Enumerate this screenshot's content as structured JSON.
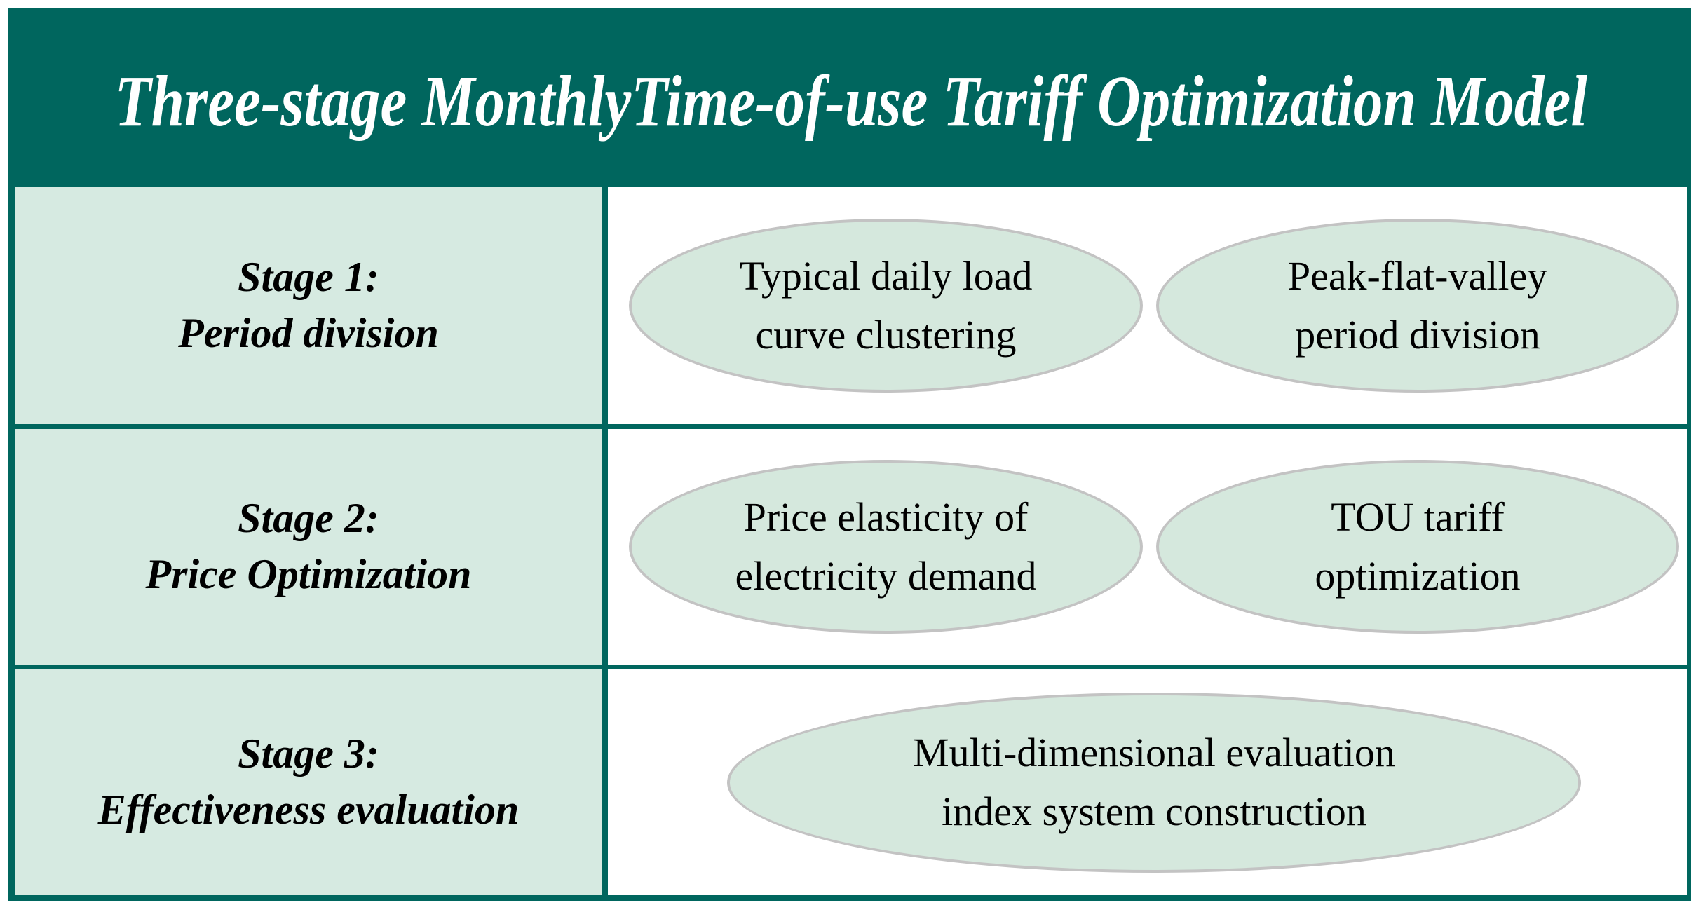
{
  "title": "Three-stage MonthlyTime-of-use Tariff Optimization Model",
  "rows": [
    {
      "stage": "Stage 1:",
      "name": "Period division",
      "ellipses": [
        {
          "line1": "Typical daily load",
          "line2": "curve clustering"
        },
        {
          "line1": "Peak-flat-valley",
          "line2": "period division"
        }
      ]
    },
    {
      "stage": "Stage 2:",
      "name": "Price Optimization",
      "ellipses": [
        {
          "line1": "Price elasticity of",
          "line2": "electricity demand"
        },
        {
          "line1": "TOU tariff",
          "line2": "optimization"
        }
      ]
    },
    {
      "stage": "Stage 3:",
      "name": "Effectiveness evaluation",
      "ellipses": [
        {
          "line1": "Multi-dimensional evaluation",
          "line2": "index system construction"
        }
      ]
    }
  ],
  "colors": {
    "header_bg": "#00665e",
    "grid_border": "#00665e",
    "label_cell_bg": "#d6eae1",
    "ellipse_fill": "#d5e8dd",
    "ellipse_border": "#c3c3c3",
    "title_color": "#ffffff",
    "text_color": "#000000"
  }
}
